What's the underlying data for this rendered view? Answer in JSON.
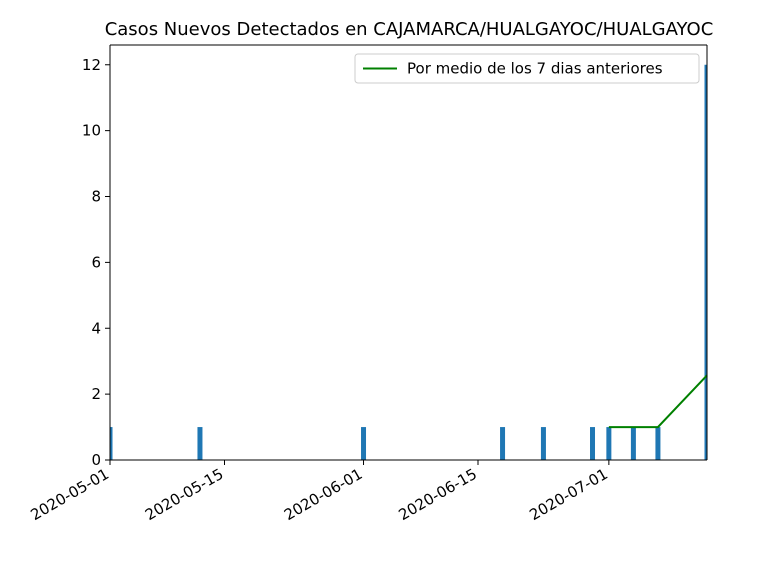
{
  "chart_data": {
    "type": "bar",
    "title": "Casos Nuevos Detectados en CAJAMARCA/HUALGAYOC/HUALGAYOC",
    "xlabel": "",
    "ylabel": "",
    "x_range": [
      "2020-05-01",
      "2020-07-13"
    ],
    "ylim": [
      0,
      12.6
    ],
    "x_ticks": [
      "2020-05-01",
      "2020-05-15",
      "2020-06-01",
      "2020-06-15",
      "2020-07-01"
    ],
    "y_ticks": [
      0,
      2,
      4,
      6,
      8,
      10,
      12
    ],
    "bars": {
      "color": "#1f77b4",
      "points": [
        {
          "x": "2020-05-01",
          "y": 1
        },
        {
          "x": "2020-05-12",
          "y": 1
        },
        {
          "x": "2020-06-01",
          "y": 1
        },
        {
          "x": "2020-06-18",
          "y": 1
        },
        {
          "x": "2020-06-23",
          "y": 1
        },
        {
          "x": "2020-06-29",
          "y": 1
        },
        {
          "x": "2020-07-01",
          "y": 1
        },
        {
          "x": "2020-07-04",
          "y": 1
        },
        {
          "x": "2020-07-07",
          "y": 1
        },
        {
          "x": "2020-07-13",
          "y": 12
        }
      ]
    },
    "series": [
      {
        "name": "Por medio de los 7 dias anteriores",
        "color": "#008000",
        "points": [
          {
            "x": "2020-07-01",
            "y": 1
          },
          {
            "x": "2020-07-04",
            "y": 1
          },
          {
            "x": "2020-07-07",
            "y": 1
          },
          {
            "x": "2020-07-13",
            "y": 2.57
          }
        ]
      }
    ],
    "legend": {
      "position": "top-right"
    },
    "grid": false
  }
}
